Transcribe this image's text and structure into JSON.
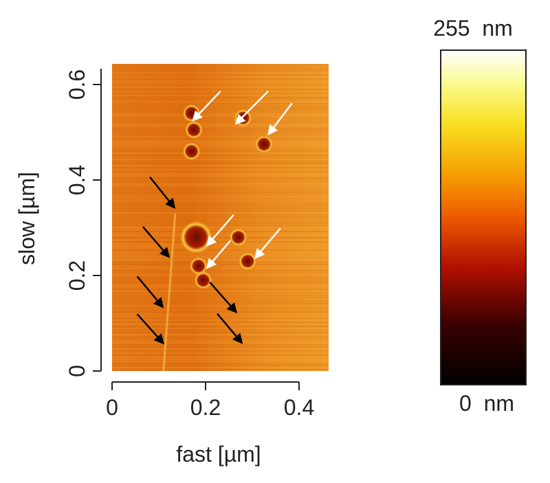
{
  "chart_data": {
    "type": "heatmap",
    "title": "",
    "xlabel": "fast [µm]",
    "ylabel": "slow [µm]",
    "xlim": [
      0,
      0.46
    ],
    "ylim": [
      0,
      0.64
    ],
    "x_ticks": [
      "0",
      "0.2",
      "0.4"
    ],
    "x_tick_values": [
      0,
      0.2,
      0.4
    ],
    "y_ticks": [
      "0",
      "0.2",
      "0.4",
      "0.6"
    ],
    "y_tick_values": [
      0,
      0.2,
      0.4,
      0.6
    ],
    "colorbar": {
      "max_label": "255  nm",
      "min_label": "0  nm",
      "range": [
        0,
        255
      ],
      "colormap": [
        "#000000",
        "#5a0000",
        "#c01800",
        "#f07000",
        "#f8b800",
        "#f8f040",
        "#ffffff"
      ]
    },
    "features": [
      {
        "x": 0.17,
        "y": 0.54
      },
      {
        "x": 0.175,
        "y": 0.505
      },
      {
        "x": 0.28,
        "y": 0.53
      },
      {
        "x": 0.325,
        "y": 0.475
      },
      {
        "x": 0.17,
        "y": 0.46
      },
      {
        "x": 0.18,
        "y": 0.28,
        "large": true
      },
      {
        "x": 0.27,
        "y": 0.28
      },
      {
        "x": 0.185,
        "y": 0.22
      },
      {
        "x": 0.29,
        "y": 0.23
      },
      {
        "x": 0.195,
        "y": 0.19
      }
    ],
    "white_arrows": [
      {
        "from": [
          0.232,
          0.586
        ],
        "to": [
          0.176,
          0.528
        ]
      },
      {
        "from": [
          0.334,
          0.586
        ],
        "to": [
          0.268,
          0.521
        ]
      },
      {
        "from": [
          0.385,
          0.561
        ],
        "to": [
          0.337,
          0.499
        ]
      },
      {
        "from": [
          0.26,
          0.327
        ],
        "to": [
          0.206,
          0.266
        ]
      },
      {
        "from": [
          0.253,
          0.273
        ],
        "to": [
          0.206,
          0.219
        ]
      },
      {
        "from": [
          0.36,
          0.299
        ],
        "to": [
          0.309,
          0.24
        ]
      }
    ],
    "black_arrows": [
      {
        "from": [
          0.081,
          0.406
        ],
        "to": [
          0.131,
          0.345
        ]
      },
      {
        "from": [
          0.066,
          0.302
        ],
        "to": [
          0.119,
          0.242
        ]
      },
      {
        "from": [
          0.054,
          0.198
        ],
        "to": [
          0.106,
          0.137
        ]
      },
      {
        "from": [
          0.054,
          0.119
        ],
        "to": [
          0.107,
          0.061
        ]
      },
      {
        "from": [
          0.209,
          0.186
        ],
        "to": [
          0.263,
          0.126
        ]
      },
      {
        "from": [
          0.225,
          0.12
        ],
        "to": [
          0.275,
          0.062
        ]
      }
    ],
    "colors": {
      "background": "#e88a20"
    }
  }
}
